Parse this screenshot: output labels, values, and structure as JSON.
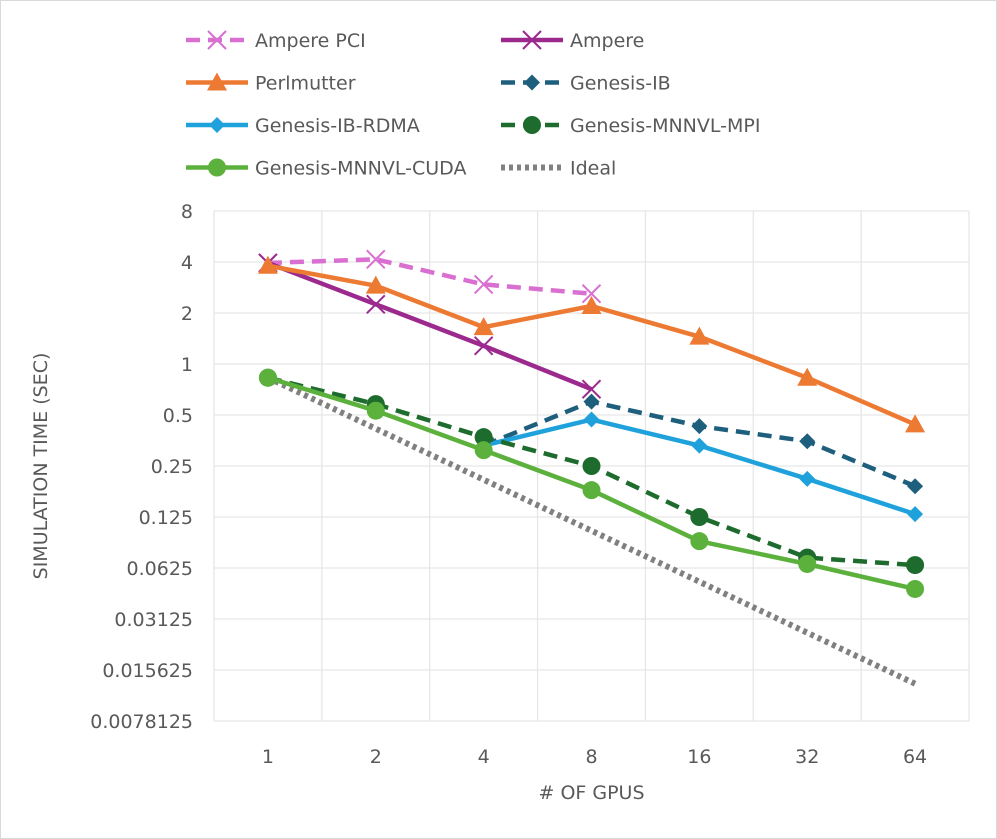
{
  "chart_data": {
    "type": "line",
    "title": "",
    "xlabel": "# OF GPUS",
    "ylabel": "SIMULATION TIME (SEC)",
    "y_scale": "log2",
    "ylim": [
      0.0078125,
      8
    ],
    "grid": true,
    "legend_position": "top",
    "categories": [
      "1",
      "2",
      "4",
      "8",
      "16",
      "32",
      "64"
    ],
    "y_ticks": [
      "8",
      "4",
      "2",
      "1",
      "0.5",
      "0.25",
      "0.125",
      "0.0625",
      "0.03125",
      "0.015625",
      "0.0078125"
    ],
    "y_tick_values": [
      8,
      4,
      2,
      1,
      0.5,
      0.25,
      0.125,
      0.0625,
      0.03125,
      0.015625,
      0.0078125
    ],
    "series": [
      {
        "name": "Ampere PCI",
        "color": "#d96fd1",
        "dash": "dash",
        "marker": "x",
        "values": [
          3.95,
          4.15,
          2.95,
          2.6,
          null,
          null,
          null
        ]
      },
      {
        "name": "Ampere",
        "color": "#9c2a8e",
        "dash": "solid",
        "marker": "x",
        "values": [
          3.95,
          2.25,
          1.28,
          0.71,
          null,
          null,
          null
        ]
      },
      {
        "name": "Perlmutter",
        "color": "#ed7a33",
        "dash": "solid",
        "marker": "triangle",
        "values": [
          3.8,
          2.9,
          1.65,
          2.2,
          1.45,
          0.83,
          0.44
        ]
      },
      {
        "name": "Genesis-IB",
        "color": "#1e5f7d",
        "dash": "dash",
        "marker": "diamond",
        "values": [
          null,
          null,
          0.33,
          0.6,
          0.43,
          0.35,
          0.19
        ]
      },
      {
        "name": "Genesis-IB-RDMA",
        "color": "#1fa2dc",
        "dash": "solid",
        "marker": "diamond",
        "values": [
          null,
          null,
          0.33,
          0.47,
          0.33,
          0.21,
          0.13
        ]
      },
      {
        "name": "Genesis-MNNVL-MPI",
        "color": "#1e6b2e",
        "dash": "dash",
        "marker": "circle",
        "values": [
          0.83,
          0.58,
          0.37,
          0.25,
          0.125,
          0.072,
          0.065
        ]
      },
      {
        "name": "Genesis-MNNVL-CUDA",
        "color": "#5cb13d",
        "dash": "solid",
        "marker": "circle",
        "values": [
          0.83,
          0.53,
          0.31,
          0.18,
          0.09,
          0.066,
          0.047
        ]
      },
      {
        "name": "Ideal",
        "color": "#808080",
        "dash": "dot",
        "marker": "none",
        "values": [
          0.83,
          0.415,
          0.2075,
          0.10375,
          0.051875,
          0.0259375,
          0.01296875
        ]
      }
    ]
  }
}
